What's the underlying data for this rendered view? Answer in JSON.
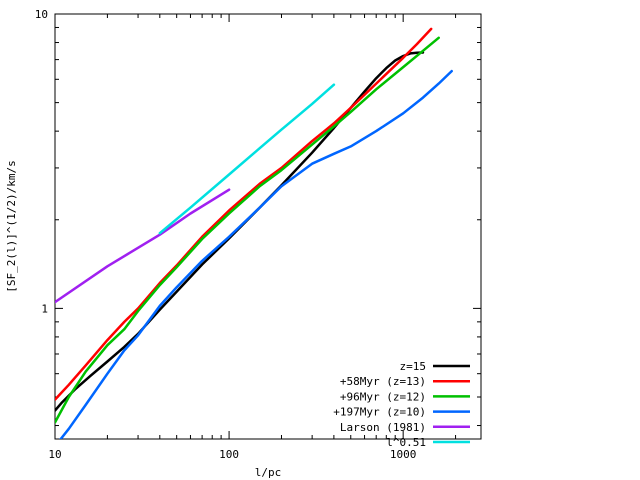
{
  "chart_data": {
    "type": "line",
    "title": "",
    "xlabel": "l/pc",
    "ylabel": "[SF_2(l)]^(1/2)/km/s",
    "xscale": "log",
    "yscale": "log",
    "xlim": [
      10,
      2800
    ],
    "ylim": [
      0.36,
      10
    ],
    "x_ticks": [
      {
        "value": 10,
        "label": "10"
      },
      {
        "value": 100,
        "label": "100"
      },
      {
        "value": 1000,
        "label": "1000"
      }
    ],
    "y_ticks": [
      {
        "value": 1,
        "label": "1"
      },
      {
        "value": 10,
        "label": "10"
      }
    ],
    "grid": false,
    "legend_position": "bottom-right",
    "series": [
      {
        "name": "z=15",
        "color": "#000000",
        "x": [
          10,
          11,
          13,
          16,
          20,
          25,
          30,
          40,
          50,
          70,
          100,
          150,
          200,
          300,
          400,
          500,
          600,
          700,
          800,
          900,
          1000,
          1100,
          1200,
          1300
        ],
        "y": [
          0.45,
          0.48,
          0.53,
          0.59,
          0.66,
          0.74,
          0.82,
          0.99,
          1.14,
          1.41,
          1.73,
          2.2,
          2.62,
          3.38,
          4.1,
          4.8,
          5.45,
          6.05,
          6.55,
          6.95,
          7.2,
          7.35,
          7.38,
          7.4
        ]
      },
      {
        "name": "+58Myr (z=13)",
        "color": "#ff0000",
        "x": [
          10,
          12,
          15,
          20,
          25,
          30,
          40,
          50,
          70,
          100,
          150,
          200,
          300,
          400,
          500,
          700,
          1000,
          1200,
          1450
        ],
        "y": [
          0.49,
          0.55,
          0.64,
          0.78,
          0.9,
          1.0,
          1.22,
          1.4,
          1.75,
          2.15,
          2.65,
          3.0,
          3.7,
          4.25,
          4.8,
          5.8,
          7.1,
          7.9,
          8.9
        ]
      },
      {
        "name": "+96Myr (z=12)",
        "color": "#00c000",
        "x": [
          10,
          12,
          15,
          20,
          25,
          30,
          40,
          50,
          70,
          100,
          150,
          200,
          300,
          400,
          500,
          700,
          1000,
          1300,
          1600
        ],
        "y": [
          0.41,
          0.5,
          0.61,
          0.75,
          0.85,
          0.98,
          1.2,
          1.38,
          1.72,
          2.1,
          2.6,
          2.95,
          3.6,
          4.15,
          4.65,
          5.55,
          6.6,
          7.5,
          8.3
        ]
      },
      {
        "name": "+197Myr (z=10)",
        "color": "#0066ff",
        "x": [
          10,
          12,
          15,
          20,
          25,
          30,
          40,
          50,
          70,
          100,
          150,
          200,
          300,
          400,
          500,
          700,
          1000,
          1300,
          1600,
          1900
        ],
        "y": [
          0.34,
          0.39,
          0.47,
          0.6,
          0.72,
          0.81,
          1.02,
          1.18,
          1.45,
          1.75,
          2.2,
          2.6,
          3.1,
          3.35,
          3.55,
          4.0,
          4.6,
          5.2,
          5.8,
          6.4
        ]
      },
      {
        "name": "Larson (1981)",
        "color": "#a020f0",
        "x": [
          10,
          20,
          40,
          60,
          100
        ],
        "y": [
          1.05,
          1.39,
          1.78,
          2.1,
          2.53
        ]
      },
      {
        "name": "l^0.51",
        "color": "#00e0e0",
        "x": [
          40,
          60,
          100,
          150,
          200,
          300,
          400
        ],
        "y": [
          1.8,
          2.2,
          2.85,
          3.5,
          4.05,
          4.95,
          5.75
        ]
      }
    ]
  }
}
